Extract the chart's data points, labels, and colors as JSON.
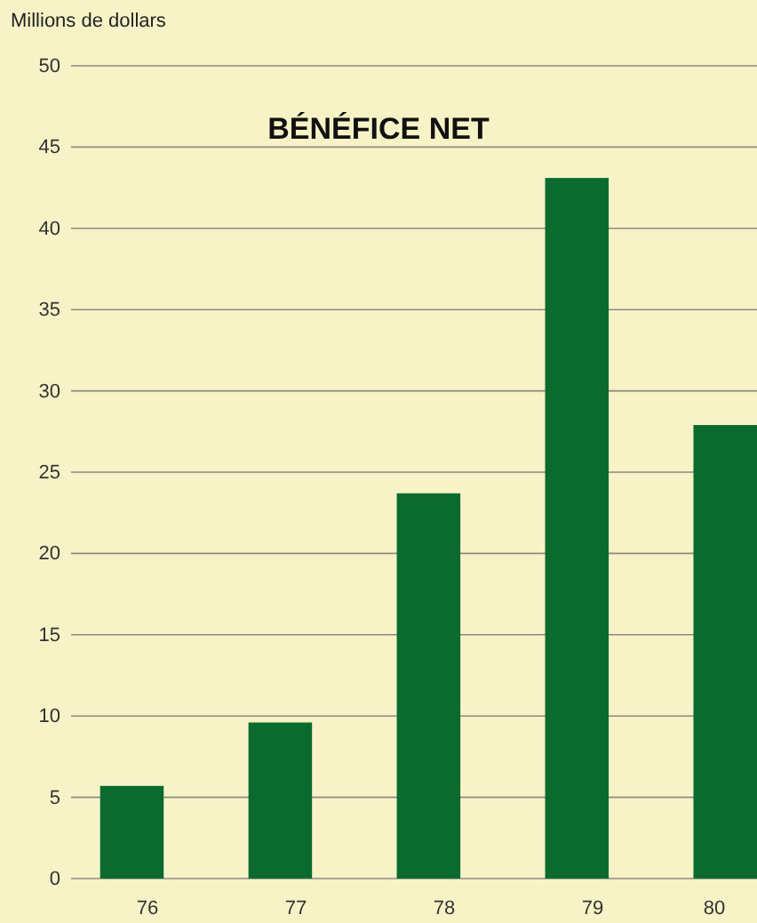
{
  "chart_data": {
    "type": "bar",
    "title": "BÉNÉFICE NET",
    "ylabel": "Millions de dollars",
    "categories": [
      "76",
      "77",
      "78",
      "79",
      "80"
    ],
    "values": [
      5.7,
      9.6,
      23.7,
      43.1,
      27.9
    ],
    "color": "#0b6b2e",
    "ylim": [
      0,
      50
    ],
    "yticks": [
      0,
      5,
      10,
      15,
      20,
      25,
      30,
      35,
      40,
      45,
      50
    ],
    "grid": "y"
  }
}
